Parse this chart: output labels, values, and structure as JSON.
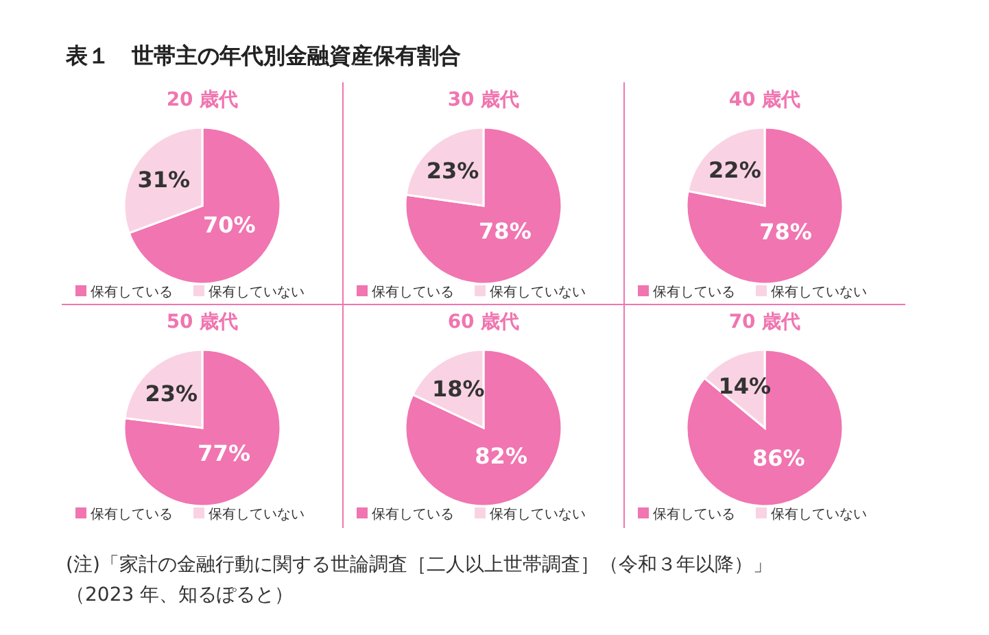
{
  "chart_data": [
    {
      "type": "other",
      "title": "表１　世帯主の年代別金融資産保有割合",
      "annotations": [
        "(注)「家計の金融行動に関する世論調査［二人以上世帯調査］（令和３年以降）」",
        "（2023 年、知るぽると）"
      ]
    },
    {
      "type": "pie",
      "title": "20 歳代",
      "categories": [
        "保有している",
        "保有していない"
      ],
      "values": [
        70,
        31
      ],
      "value_labels": [
        "70%",
        "31%"
      ],
      "colors": [
        "#f075b0",
        "#f9d3e3"
      ],
      "legend": "bottom"
    },
    {
      "type": "pie",
      "title": "30 歳代",
      "categories": [
        "保有している",
        "保有していない"
      ],
      "values": [
        78,
        23
      ],
      "value_labels": [
        "78%",
        "23%"
      ],
      "colors": [
        "#f075b0",
        "#f9d3e3"
      ],
      "legend": "bottom"
    },
    {
      "type": "pie",
      "title": "40 歳代",
      "categories": [
        "保有している",
        "保有していない"
      ],
      "values": [
        78,
        22
      ],
      "value_labels": [
        "78%",
        "22%"
      ],
      "colors": [
        "#f075b0",
        "#f9d3e3"
      ],
      "legend": "bottom"
    },
    {
      "type": "pie",
      "title": "50 歳代",
      "categories": [
        "保有している",
        "保有していない"
      ],
      "values": [
        77,
        23
      ],
      "value_labels": [
        "77%",
        "23%"
      ],
      "colors": [
        "#f075b0",
        "#f9d3e3"
      ],
      "legend": "bottom"
    },
    {
      "type": "pie",
      "title": "60 歳代",
      "categories": [
        "保有している",
        "保有していない"
      ],
      "values": [
        82,
        18
      ],
      "value_labels": [
        "82%",
        "18%"
      ],
      "colors": [
        "#f075b0",
        "#f9d3e3"
      ],
      "legend": "bottom"
    },
    {
      "type": "pie",
      "title": "70 歳代",
      "categories": [
        "保有している",
        "保有していない"
      ],
      "values": [
        86,
        14
      ],
      "value_labels": [
        "86%",
        "14%"
      ],
      "colors": [
        "#f075b0",
        "#f9d3e3"
      ],
      "legend": "bottom"
    }
  ]
}
